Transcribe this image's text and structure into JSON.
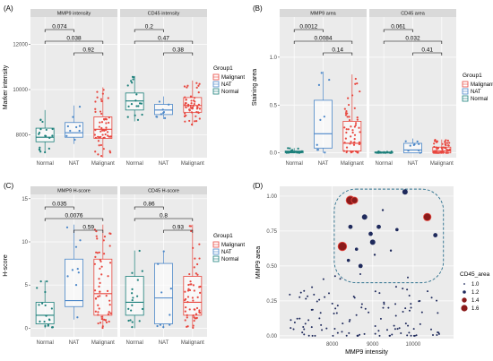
{
  "colors": {
    "Normal": "#1b7f7a",
    "NAT": "#4a86c8",
    "Malignant": "#e8473f",
    "scatter": "#1f2a5c",
    "highlight": "#8b1a1a"
  },
  "panels": [
    {
      "letter": "(A)"
    },
    {
      "letter": "(B)"
    },
    {
      "letter": "(C)"
    },
    {
      "letter": "(D)"
    }
  ],
  "legend": {
    "title": "Group1",
    "items": [
      "Malignant",
      "NAT",
      "Normal"
    ]
  },
  "chart_data": [
    {
      "type": "box",
      "ylabel": "Marker intensity",
      "categories": [
        "Normal",
        "NAT",
        "Malignant"
      ],
      "facets": [
        {
          "strip": "MMP9 intensity",
          "boxes": [
            {
              "group": "Normal",
              "q1": 7700,
              "median": 7900,
              "q3": 8300,
              "whisker_low": 7200,
              "whisker_high": 9100
            },
            {
              "group": "NAT",
              "q1": 7900,
              "median": 8100,
              "q3": 8550,
              "whisker_low": 7600,
              "whisker_high": 9300
            },
            {
              "group": "Malignant",
              "q1": 7850,
              "median": 8250,
              "q3": 8800,
              "whisker_low": 7000,
              "whisker_high": 10100
            }
          ],
          "pvalues": [
            {
              "a": 0,
              "b": 1,
              "label": "0.074"
            },
            {
              "a": 0,
              "b": 2,
              "label": "0.038"
            },
            {
              "a": 1,
              "b": 2,
              "label": "0.92"
            }
          ]
        },
        {
          "strip": "CD45 intensity",
          "boxes": [
            {
              "group": "Normal",
              "q1": 9100,
              "median": 9500,
              "q3": 9850,
              "whisker_low": 8600,
              "whisker_high": 10600
            },
            {
              "group": "NAT",
              "q1": 8900,
              "median": 9100,
              "q3": 9350,
              "whisker_low": 8700,
              "whisker_high": 9700
            },
            {
              "group": "Malignant",
              "q1": 9000,
              "median": 9300,
              "q3": 9650,
              "whisker_low": 8400,
              "whisker_high": 10400
            }
          ],
          "pvalues": [
            {
              "a": 0,
              "b": 1,
              "label": "0.2"
            },
            {
              "a": 0,
              "b": 2,
              "label": "0.47"
            },
            {
              "a": 1,
              "b": 2,
              "label": "0.38"
            }
          ]
        }
      ],
      "yticks": [
        8000,
        10000,
        12000
      ],
      "ylim": [
        7000,
        13200
      ]
    },
    {
      "type": "box",
      "ylabel": "Staining area",
      "categories": [
        "Normal",
        "NAT",
        "Malignant"
      ],
      "facets": [
        {
          "strip": "MMP9 area",
          "boxes": [
            {
              "group": "Normal",
              "q1": 0.0,
              "median": 0.01,
              "q3": 0.02,
              "whisker_low": 0.0,
              "whisker_high": 0.05
            },
            {
              "group": "NAT",
              "q1": 0.05,
              "median": 0.2,
              "q3": 0.55,
              "whisker_low": 0.0,
              "whisker_high": 0.85
            },
            {
              "group": "Malignant",
              "q1": 0.02,
              "median": 0.1,
              "q3": 0.33,
              "whisker_low": 0.0,
              "whisker_high": 0.82
            }
          ],
          "pvalues": [
            {
              "a": 0,
              "b": 1,
              "label": "0.0012"
            },
            {
              "a": 0,
              "b": 2,
              "label": "0.0084"
            },
            {
              "a": 1,
              "b": 2,
              "label": "0.14"
            }
          ]
        },
        {
          "strip": "CD45 area",
          "boxes": [
            {
              "group": "Normal",
              "q1": 0.0,
              "median": 0.0,
              "q3": 0.01,
              "whisker_low": 0.0,
              "whisker_high": 0.02
            },
            {
              "group": "NAT",
              "q1": 0.0,
              "median": 0.03,
              "q3": 0.1,
              "whisker_low": 0.0,
              "whisker_high": 0.15
            },
            {
              "group": "Malignant",
              "q1": 0.0,
              "median": 0.02,
              "q3": 0.06,
              "whisker_low": 0.0,
              "whisker_high": 0.14
            }
          ],
          "pvalues": [
            {
              "a": 0,
              "b": 1,
              "label": "0.061"
            },
            {
              "a": 0,
              "b": 2,
              "label": "0.032"
            },
            {
              "a": 1,
              "b": 2,
              "label": "0.41"
            }
          ]
        }
      ],
      "yticks": [
        0.0,
        0.5,
        1.0
      ],
      "ylim": [
        -0.05,
        1.42
      ]
    },
    {
      "type": "box",
      "ylabel": "H-score",
      "categories": [
        "Normal",
        "NAT",
        "Malignant"
      ],
      "facets": [
        {
          "strip": "MMP9 H-score",
          "boxes": [
            {
              "group": "Normal",
              "q1": 0.5,
              "median": 1.5,
              "q3": 3.0,
              "whisker_low": 0.0,
              "whisker_high": 5.5
            },
            {
              "group": "NAT",
              "q1": 2.5,
              "median": 3.2,
              "q3": 8.0,
              "whisker_low": 1.0,
              "whisker_high": 12.0
            },
            {
              "group": "Malignant",
              "q1": 1.5,
              "median": 4.0,
              "q3": 8.0,
              "whisker_low": 0.0,
              "whisker_high": 12.0
            }
          ],
          "pvalues": [
            {
              "a": 0,
              "b": 1,
              "label": "0.035"
            },
            {
              "a": 0,
              "b": 2,
              "label": "0.0076"
            },
            {
              "a": 1,
              "b": 2,
              "label": "0.59"
            }
          ]
        },
        {
          "strip": "CD45 H-score",
          "boxes": [
            {
              "group": "Normal",
              "q1": 1.5,
              "median": 3.0,
              "q3": 6.0,
              "whisker_low": 0.0,
              "whisker_high": 9.0
            },
            {
              "group": "NAT",
              "q1": 0.5,
              "median": 3.5,
              "q3": 7.5,
              "whisker_low": 0.0,
              "whisker_high": 9.0
            },
            {
              "group": "Malignant",
              "q1": 1.5,
              "median": 3.0,
              "q3": 6.0,
              "whisker_low": 0.0,
              "whisker_high": 12.0
            }
          ],
          "pvalues": [
            {
              "a": 0,
              "b": 1,
              "label": "0.86"
            },
            {
              "a": 0,
              "b": 2,
              "label": "0.8"
            },
            {
              "a": 1,
              "b": 2,
              "label": "0.93"
            }
          ]
        }
      ],
      "yticks": [
        0,
        5,
        10,
        15
      ],
      "ylim": [
        -1,
        15.5
      ]
    },
    {
      "type": "scatter",
      "xlabel": "MMP9 intensity",
      "ylabel": "MMP9 area",
      "xticks": [
        8000,
        9000,
        10000
      ],
      "yticks": [
        0.0,
        0.25,
        0.5,
        0.75,
        1.0
      ],
      "xlim": [
        6700,
        11000
      ],
      "ylim": [
        -0.02,
        1.07
      ],
      "size_legend": {
        "title": "CD45_area",
        "values": [
          1.0,
          1.2,
          1.4,
          1.6
        ]
      },
      "highlight_points": [
        {
          "x": 8250,
          "y": 0.64,
          "size": 1.6
        },
        {
          "x": 8450,
          "y": 0.97,
          "size": 1.6
        },
        {
          "x": 8550,
          "y": 0.97,
          "size": 1.4
        },
        {
          "x": 9800,
          "y": 1.03,
          "size": 1.3
        },
        {
          "x": 10350,
          "y": 0.85,
          "size": 1.5
        },
        {
          "x": 10550,
          "y": 0.72,
          "size": 1.2
        },
        {
          "x": 8950,
          "y": 0.73,
          "size": 1.2
        },
        {
          "x": 9000,
          "y": 0.67,
          "size": 1.3
        },
        {
          "x": 8600,
          "y": 0.62,
          "size": 1.1
        },
        {
          "x": 9150,
          "y": 0.78,
          "size": 1.2
        },
        {
          "x": 9450,
          "y": 0.61,
          "size": 1.0
        },
        {
          "x": 8800,
          "y": 0.85,
          "size": 1.3
        },
        {
          "x": 8400,
          "y": 0.54,
          "size": 1.1
        },
        {
          "x": 9250,
          "y": 0.9,
          "size": 1.0
        },
        {
          "x": 8700,
          "y": 0.5,
          "size": 1.2
        },
        {
          "x": 9600,
          "y": 0.76,
          "size": 1.1
        },
        {
          "x": 8450,
          "y": 0.78,
          "size": 1.2
        },
        {
          "x": 9050,
          "y": 0.58,
          "size": 1.0
        }
      ]
    }
  ]
}
